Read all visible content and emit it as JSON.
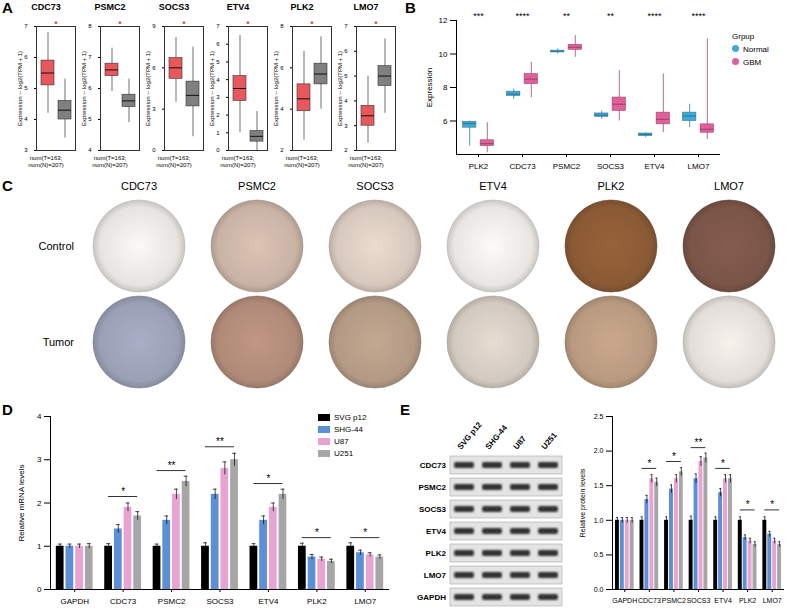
{
  "chart_data": [
    {
      "panel": "A",
      "type": "box",
      "title": "CDC73",
      "xlabel": "num(T=163; num(N)=207)",
      "ylabel": "Expression -- log2(TPM + 1)",
      "ylim": [
        3,
        7
      ],
      "yticks": [
        3,
        4,
        5,
        6,
        7
      ],
      "series": [
        {
          "name": "T",
          "color": "#e8575b",
          "min": 4.2,
          "q1": 5.1,
          "median": 5.5,
          "q3": 5.9,
          "max": 6.8
        },
        {
          "name": "N",
          "color": "#808080",
          "min": 3.4,
          "q1": 4.0,
          "median": 4.3,
          "q3": 4.6,
          "max": 5.3
        }
      ],
      "annotations": [
        {
          "text": "*"
        }
      ]
    },
    {
      "panel": "A",
      "type": "box",
      "title": "PSMC2",
      "xlabel": "num(T=163; num(N)=207)",
      "ylabel": "Expression -- log2(TPM + 1)",
      "ylim": [
        4,
        8
      ],
      "yticks": [
        4,
        5,
        6,
        7,
        8
      ],
      "series": [
        {
          "name": "T",
          "color": "#e8575b",
          "min": 5.9,
          "q1": 6.4,
          "median": 6.6,
          "q3": 6.8,
          "max": 7.3
        },
        {
          "name": "N",
          "color": "#808080",
          "min": 4.9,
          "q1": 5.4,
          "median": 5.6,
          "q3": 5.8,
          "max": 6.3
        }
      ],
      "annotations": [
        {
          "text": "*"
        }
      ]
    },
    {
      "panel": "A",
      "type": "box",
      "title": "SOCS3",
      "xlabel": "num(T=163; num(N)=207)",
      "ylabel": "Expression -- log2(TPM + 1)",
      "ylim": [
        0,
        9
      ],
      "yticks": [
        0,
        3,
        6,
        9
      ],
      "series": [
        {
          "name": "T",
          "color": "#e8575b",
          "min": 3.5,
          "q1": 5.2,
          "median": 6.0,
          "q3": 6.7,
          "max": 8.2
        },
        {
          "name": "N",
          "color": "#808080",
          "min": 1.0,
          "q1": 3.2,
          "median": 4.0,
          "q3": 5.0,
          "max": 7.5
        }
      ],
      "annotations": [
        {
          "text": "*"
        }
      ]
    },
    {
      "panel": "A",
      "type": "box",
      "title": "ETV4",
      "xlabel": "num(T=163; num(N)=207)",
      "ylabel": "Expression -- log2(TPM + 1)",
      "ylim": [
        0,
        7
      ],
      "yticks": [
        0,
        1,
        2,
        3,
        4,
        5,
        6,
        7
      ],
      "series": [
        {
          "name": "T",
          "color": "#e8575b",
          "min": 1.0,
          "q1": 2.8,
          "median": 3.5,
          "q3": 4.2,
          "max": 6.5
        },
        {
          "name": "N",
          "color": "#808080",
          "min": 0,
          "q1": 0.5,
          "median": 0.8,
          "q3": 1.1,
          "max": 2.2
        }
      ],
      "annotations": [
        {
          "text": "*"
        }
      ]
    },
    {
      "panel": "A",
      "type": "box",
      "title": "PLK2",
      "xlabel": "num(T=163; num(N)=207)",
      "ylabel": "Expression -- log2(TPM + 1)",
      "ylim": [
        2,
        8
      ],
      "yticks": [
        2,
        4,
        6,
        8
      ],
      "series": [
        {
          "name": "T",
          "color": "#e8575b",
          "min": 2.5,
          "q1": 3.9,
          "median": 4.5,
          "q3": 5.2,
          "max": 6.8
        },
        {
          "name": "N",
          "color": "#808080",
          "min": 4.0,
          "q1": 5.2,
          "median": 5.7,
          "q3": 6.2,
          "max": 7.5
        }
      ],
      "annotations": [
        {
          "text": "*"
        }
      ]
    },
    {
      "panel": "A",
      "type": "box",
      "title": "LMO7",
      "xlabel": "num(T=163; num(N)=207)",
      "ylabel": "Expression -- log2(TPM + 1)",
      "ylim": [
        2,
        7
      ],
      "yticks": [
        2,
        3,
        4,
        5,
        6,
        7
      ],
      "series": [
        {
          "name": "T",
          "color": "#e8575b",
          "min": 2.3,
          "q1": 3.0,
          "median": 3.4,
          "q3": 3.8,
          "max": 5.0
        },
        {
          "name": "N",
          "color": "#808080",
          "min": 3.5,
          "q1": 4.6,
          "median": 5.0,
          "q3": 5.4,
          "max": 6.5
        }
      ],
      "annotations": [
        {
          "text": "*"
        }
      ]
    },
    {
      "panel": "B",
      "type": "box",
      "categories": [
        "PLK2",
        "CDC73",
        "PSMC2",
        "SOCS3",
        "ETV4",
        "LMO7"
      ],
      "ylabel": "Expression",
      "ylim": [
        4,
        12
      ],
      "yticks": [
        6,
        8,
        10,
        12
      ],
      "legend": "right",
      "legend_title": "Grpup",
      "series": [
        {
          "name": "Normal",
          "color": "#3fa9d8",
          "min": [
            4.5,
            7.3,
            10.0,
            6.1,
            5.0,
            5.6
          ],
          "q1": [
            5.6,
            7.5,
            10.1,
            6.25,
            5.1,
            6.0
          ],
          "median": [
            5.85,
            7.6,
            10.15,
            6.35,
            5.2,
            6.3
          ],
          "q3": [
            5.95,
            7.75,
            10.2,
            6.45,
            5.25,
            6.5
          ],
          "max": [
            6.0,
            7.9,
            10.3,
            6.6,
            5.3,
            7.0
          ]
        },
        {
          "name": "GBM",
          "color": "#e0609a",
          "min": [
            4.1,
            7.4,
            9.8,
            6.0,
            5.3,
            4.9
          ],
          "q1": [
            4.5,
            8.2,
            10.25,
            6.6,
            5.8,
            5.3
          ],
          "median": [
            4.65,
            8.5,
            10.4,
            7.0,
            6.1,
            5.5
          ],
          "q3": [
            4.85,
            8.8,
            10.55,
            7.4,
            6.5,
            5.8
          ],
          "max": [
            5.9,
            9.5,
            11.1,
            9.0,
            8.8,
            10.9
          ]
        }
      ],
      "annotations": [
        {
          "category": "PLK2",
          "text": "***"
        },
        {
          "category": "CDC73",
          "text": "****"
        },
        {
          "category": "PSMC2",
          "text": "**"
        },
        {
          "category": "SOCS3",
          "text": "**"
        },
        {
          "category": "ETV4",
          "text": "****"
        },
        {
          "category": "LMO7",
          "text": "****"
        }
      ]
    },
    {
      "panel": "D",
      "type": "bar",
      "categories": [
        "GAPDH",
        "CDC73",
        "PSMC2",
        "SOCS3",
        "ETV4",
        "PLK2",
        "LMO7"
      ],
      "ylabel": "Relative mRNA levels",
      "ylim": [
        0,
        4
      ],
      "yticks": [
        0,
        1,
        2,
        3,
        4
      ],
      "legend": "top-right",
      "series": [
        {
          "name": "SVG p12",
          "color": "#000000",
          "values": [
            1,
            1,
            1,
            1,
            1,
            1,
            1
          ],
          "errors": [
            0.05,
            0.06,
            0.05,
            0.08,
            0.06,
            0.07,
            0.08
          ]
        },
        {
          "name": "SHG-44",
          "color": "#5b8fd6",
          "values": [
            1.0,
            1.4,
            1.6,
            2.2,
            1.6,
            0.75,
            0.85
          ],
          "errors": [
            0.05,
            0.1,
            0.1,
            0.12,
            0.1,
            0.06,
            0.06
          ]
        },
        {
          "name": "U87",
          "color": "#e8a2d4",
          "values": [
            1.0,
            1.9,
            2.2,
            2.8,
            1.9,
            0.7,
            0.8
          ],
          "errors": [
            0.05,
            0.1,
            0.12,
            0.15,
            0.1,
            0.05,
            0.05
          ]
        },
        {
          "name": "U251",
          "color": "#a6a6a6",
          "values": [
            1.0,
            1.7,
            2.5,
            3.0,
            2.2,
            0.65,
            0.75
          ],
          "errors": [
            0.06,
            0.1,
            0.12,
            0.15,
            0.12,
            0.05,
            0.05
          ]
        }
      ],
      "annotations": [
        {
          "category": "CDC73",
          "text": "*",
          "y": 2.15
        },
        {
          "category": "PSMC2",
          "text": "**",
          "y": 2.75
        },
        {
          "category": "SOCS3",
          "text": "**",
          "y": 3.3
        },
        {
          "category": "ETV4",
          "text": "*",
          "y": 2.45
        },
        {
          "category": "PLK2",
          "text": "*",
          "y": 1.2
        },
        {
          "category": "LMO7",
          "text": "*",
          "y": 1.2
        }
      ]
    },
    {
      "panel": "E",
      "type": "bar",
      "categories": [
        "GAPDH",
        "CDC73",
        "PSMC2",
        "SOCS3",
        "ETV4",
        "PLK2",
        "LMO7"
      ],
      "ylabel": "Relative protein levels",
      "ylim": [
        0,
        2.5
      ],
      "yticks": [
        {
          "value": 0,
          "label": "0.0"
        },
        {
          "value": 0.5,
          "label": "0.5"
        },
        {
          "value": 1,
          "label": "1.0"
        },
        {
          "value": 1.5,
          "label": "1.5"
        },
        {
          "value": 2,
          "label": "2.0"
        },
        {
          "value": 2.5,
          "label": "2.5"
        }
      ],
      "series": [
        {
          "name": "SVG p12",
          "color": "#000000",
          "values": [
            1,
            1,
            1,
            1,
            1,
            1,
            1
          ],
          "errors": [
            0.04,
            0.05,
            0.05,
            0.06,
            0.05,
            0.05,
            0.05
          ]
        },
        {
          "name": "SHG-44",
          "color": "#5b8fd6",
          "values": [
            1.0,
            1.3,
            1.45,
            1.6,
            1.4,
            0.75,
            0.8
          ],
          "errors": [
            0.04,
            0.06,
            0.06,
            0.07,
            0.06,
            0.04,
            0.04
          ]
        },
        {
          "name": "U87",
          "color": "#e8a2d4",
          "values": [
            1.0,
            1.6,
            1.6,
            1.85,
            1.6,
            0.7,
            0.7
          ],
          "errors": [
            0.04,
            0.06,
            0.06,
            0.07,
            0.06,
            0.04,
            0.04
          ]
        },
        {
          "name": "U251",
          "color": "#a6a6a6",
          "values": [
            1.0,
            1.55,
            1.7,
            1.9,
            1.6,
            0.65,
            0.65
          ],
          "errors": [
            0.04,
            0.06,
            0.06,
            0.07,
            0.06,
            0.04,
            0.04
          ]
        }
      ],
      "annotations": [
        {
          "category": "CDC73",
          "text": "*",
          "y": 1.75
        },
        {
          "category": "PSMC2",
          "text": "*",
          "y": 1.85
        },
        {
          "category": "SOCS3",
          "text": "**",
          "y": 2.05
        },
        {
          "category": "ETV4",
          "text": "*",
          "y": 1.75
        },
        {
          "category": "PLK2",
          "text": "*",
          "y": 1.15
        },
        {
          "category": "LMO7",
          "text": "*",
          "y": 1.15
        }
      ]
    }
  ],
  "ihc": {
    "panel": "C",
    "columns": [
      "CDC73",
      "PSMC2",
      "SOCS3",
      "ETV4",
      "PLK2",
      "LMO7"
    ],
    "rows": [
      "Control",
      "Tumor"
    ],
    "colors": [
      [
        "#e6e3e0",
        "#c9b3a5",
        "#d7c8bd",
        "#e8e5e2",
        "#8a5a35",
        "#7a5548"
      ],
      [
        "#9aa0b5",
        "#b08a78",
        "#b39a85",
        "#d2c9c0",
        "#b99a80",
        "#e2ddd8"
      ]
    ]
  },
  "blot": {
    "panel": "E",
    "lanes": [
      "SVG p12",
      "SHG-44",
      "U87",
      "U251"
    ],
    "rows": [
      "CDC73",
      "PSMC2",
      "SOCS3",
      "ETV4",
      "PLK2",
      "LMO7",
      "GAPDH"
    ]
  }
}
